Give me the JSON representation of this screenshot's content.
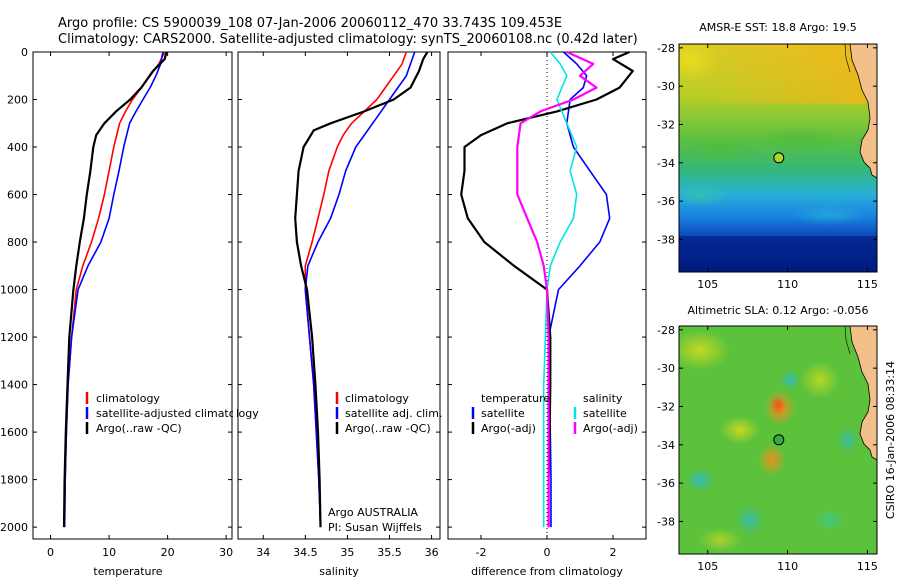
{
  "title": {
    "line1": "Argo profile: CS 5900039_108 07-Jan-2006 20060112_470 33.743S 109.453E",
    "line2": "Climatology: CARS2000. Satellite-adjusted climatology: synTS_20060108.nc (0.42d later)"
  },
  "side_label": "CSIRO 16-Jan-2006 08:33:14",
  "colors": {
    "climatology": "#ff0000",
    "satellite": "#0000ff",
    "argo": "#000000",
    "cyan": "#00e5e5",
    "magenta": "#ff00ff"
  },
  "chart_data": [
    {
      "type": "line",
      "id": "temperature",
      "xlabel": "temperature",
      "ylabel": "",
      "xlim": [
        -3,
        31
      ],
      "ylim": [
        2050,
        0
      ],
      "x_ticks": [
        0,
        10,
        20,
        30
      ],
      "y_ticks": [
        0,
        200,
        400,
        600,
        800,
        1000,
        1200,
        1400,
        1600,
        1800,
        2000
      ],
      "series": [
        {
          "name": "climatology",
          "color": "#ff0000",
          "depth": [
            0,
            50,
            100,
            150,
            200,
            250,
            300,
            400,
            500,
            600,
            700,
            800,
            900,
            1000,
            1200,
            1400,
            1600,
            1800,
            2000
          ],
          "values": [
            19.5,
            18.5,
            17.0,
            15.5,
            14.0,
            12.8,
            11.8,
            10.8,
            10.0,
            9.2,
            8.2,
            7.0,
            5.5,
            4.4,
            3.6,
            3.0,
            2.7,
            2.5,
            2.4
          ]
        },
        {
          "name": "satellite-adjusted climatology",
          "color": "#0000ff",
          "depth": [
            0,
            50,
            100,
            150,
            200,
            250,
            300,
            400,
            500,
            600,
            700,
            800,
            900,
            1000,
            1200,
            1400,
            1600,
            1800,
            2000
          ],
          "values": [
            19.2,
            18.8,
            18.0,
            17.0,
            15.8,
            14.6,
            13.5,
            12.5,
            11.7,
            10.8,
            10.0,
            8.6,
            6.4,
            4.7,
            3.6,
            3.0,
            2.7,
            2.5,
            2.4
          ]
        },
        {
          "name": "Argo(..raw -QC)",
          "color": "#000000",
          "depth": [
            0,
            30,
            80,
            150,
            200,
            250,
            300,
            350,
            400,
            500,
            600,
            700,
            800,
            900,
            1000,
            1200,
            1400,
            1600,
            1800,
            2000
          ],
          "values": [
            19.8,
            19.5,
            17.5,
            15.5,
            13.6,
            11.2,
            9.2,
            7.8,
            7.3,
            6.8,
            6.2,
            5.7,
            5.0,
            4.4,
            3.9,
            3.2,
            2.9,
            2.6,
            2.4,
            2.3
          ]
        }
      ],
      "legend": [
        "climatology",
        "satellite-adjusted climatology",
        "Argo(..raw -QC)"
      ]
    },
    {
      "type": "line",
      "id": "salinity",
      "xlabel": "salinity",
      "xlim": [
        33.7,
        36.1
      ],
      "ylim": [
        2050,
        0
      ],
      "x_ticks": [
        34,
        34.5,
        35,
        35.5,
        36
      ],
      "x_tick_labels": [
        "34",
        "34.5",
        "35",
        "35.5",
        "36"
      ],
      "series": [
        {
          "name": "climatology",
          "color": "#ff0000",
          "depth": [
            0,
            50,
            100,
            150,
            200,
            250,
            300,
            350,
            400,
            500,
            600,
            700,
            800,
            900,
            1000,
            1200,
            1400,
            1600,
            1800,
            2000
          ],
          "values": [
            35.7,
            35.65,
            35.55,
            35.45,
            35.35,
            35.2,
            35.05,
            34.95,
            34.88,
            34.78,
            34.72,
            34.65,
            34.58,
            34.5,
            34.5,
            34.55,
            34.6,
            34.63,
            34.66,
            34.68
          ]
        },
        {
          "name": "satellite adj. clim.",
          "color": "#0000ff",
          "depth": [
            0,
            50,
            100,
            150,
            200,
            250,
            300,
            350,
            400,
            500,
            600,
            700,
            800,
            900,
            1000,
            1200,
            1400,
            1600,
            1800,
            2000
          ],
          "values": [
            35.8,
            35.75,
            35.7,
            35.6,
            35.5,
            35.4,
            35.3,
            35.2,
            35.1,
            34.98,
            34.9,
            34.8,
            34.65,
            34.53,
            34.5,
            34.55,
            34.6,
            34.63,
            34.66,
            34.68
          ]
        },
        {
          "name": "Argo(..raw -QC)",
          "color": "#000000",
          "depth": [
            0,
            30,
            80,
            150,
            200,
            250,
            300,
            330,
            400,
            500,
            600,
            700,
            800,
            900,
            1000,
            1200,
            1400,
            1600,
            1800,
            2000
          ],
          "values": [
            35.95,
            35.9,
            35.85,
            35.75,
            35.55,
            35.2,
            34.8,
            34.6,
            34.48,
            34.42,
            34.4,
            34.38,
            34.4,
            34.45,
            34.52,
            34.58,
            34.62,
            34.65,
            34.67,
            34.68
          ]
        }
      ],
      "legend": [
        "climatology",
        "satellite adj. clim.",
        "Argo(..raw -QC)"
      ],
      "annotation": [
        "Argo AUSTRALIA",
        "PI: Susan Wijffels"
      ]
    },
    {
      "type": "line",
      "id": "difference",
      "xlabel": "difference from climatology",
      "xlim": [
        -3,
        3
      ],
      "ylim": [
        2050,
        0
      ],
      "x_ticks": [
        -2,
        0,
        2
      ],
      "zero_line": true,
      "series": [
        {
          "name": "temperature satellite",
          "color": "#0000ff",
          "depth": [
            0,
            50,
            100,
            150,
            200,
            300,
            400,
            500,
            600,
            700,
            800,
            900,
            1000,
            1200,
            1400,
            1600,
            1800,
            2000
          ],
          "values": [
            0.5,
            0.9,
            1.2,
            1.1,
            0.7,
            0.6,
            0.8,
            1.3,
            1.8,
            1.9,
            1.6,
            1.0,
            0.35,
            0.05,
            0.05,
            0.1,
            0.12,
            0.12
          ]
        },
        {
          "name": "temperature Argo(-adj)",
          "color": "#000000",
          "depth": [
            0,
            30,
            80,
            150,
            200,
            250,
            300,
            350,
            400,
            500,
            600,
            700,
            800,
            900,
            1000,
            1200,
            1400,
            1600,
            1800,
            2000
          ],
          "values": [
            2.5,
            2.0,
            2.6,
            2.2,
            1.5,
            0.3,
            -1.2,
            -2.0,
            -2.5,
            -2.5,
            -2.6,
            -2.4,
            -1.9,
            -1.0,
            0.0,
            0.1,
            0.1,
            0.08,
            0.05,
            0.05
          ]
        },
        {
          "name": "salinity satellite",
          "color": "#00e5e5",
          "depth": [
            0,
            50,
            100,
            200,
            300,
            400,
            500,
            600,
            700,
            800,
            900,
            1000,
            1200,
            1400,
            1600,
            1800,
            2000
          ],
          "values": [
            0.1,
            0.4,
            0.6,
            0.3,
            0.6,
            0.9,
            0.7,
            0.9,
            0.8,
            0.4,
            0.1,
            0.0,
            -0.05,
            -0.1,
            -0.1,
            -0.1,
            -0.1
          ]
        },
        {
          "name": "salinity Argo(-adj)",
          "color": "#ff00ff",
          "depth": [
            0,
            50,
            100,
            150,
            200,
            250,
            300,
            400,
            500,
            600,
            700,
            800,
            900,
            1000,
            1200,
            1400,
            1600,
            1800,
            2000
          ],
          "values": [
            0.6,
            1.4,
            1.0,
            1.5,
            0.8,
            -0.2,
            -0.8,
            -0.9,
            -0.9,
            -0.9,
            -0.6,
            -0.3,
            -0.1,
            0.0,
            0.05,
            0.05,
            0.05,
            0.05,
            0.05
          ]
        }
      ],
      "legend_left_header": "temperature",
      "legend_right_header": "salinity",
      "legend_left": [
        "satellite",
        "Argo(-adj)"
      ],
      "legend_right": [
        "satellite",
        "Argo(-adj)"
      ]
    },
    {
      "type": "heatmap",
      "id": "sst_map",
      "title": "AMSR-E SST: 18.8  Argo: 19.5",
      "x_ticks": [
        105,
        110,
        115
      ],
      "y_ticks": [
        -28,
        -30,
        -32,
        -34,
        -36,
        -38
      ],
      "xlim": [
        103.2,
        115.6
      ],
      "ylim": [
        -39.7,
        -27.8
      ],
      "float_position": {
        "lon": 109.45,
        "lat": -33.74
      }
    },
    {
      "type": "heatmap",
      "id": "sla_map",
      "title": "Altimetric SLA: 0.12  Argo: -0.056",
      "x_ticks": [
        105,
        110,
        115
      ],
      "y_ticks": [
        -28,
        -30,
        -32,
        -34,
        -36,
        -38
      ],
      "xlim": [
        103.2,
        115.6
      ],
      "ylim": [
        -39.7,
        -27.8
      ],
      "float_position": {
        "lon": 109.45,
        "lat": -33.74
      }
    }
  ]
}
